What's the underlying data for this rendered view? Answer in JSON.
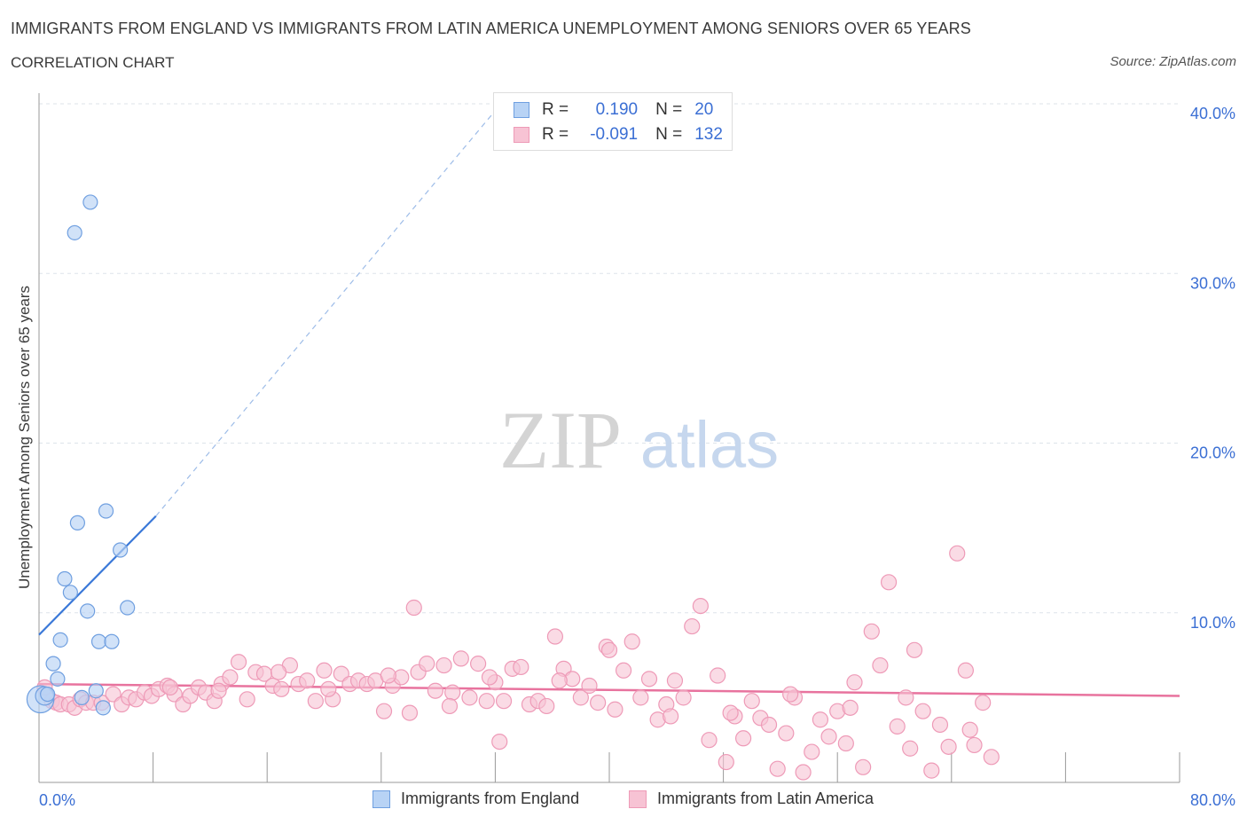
{
  "title": "IMMIGRANTS FROM ENGLAND VS IMMIGRANTS FROM LATIN AMERICA UNEMPLOYMENT AMONG SENIORS OVER 65 YEARS",
  "subtitle": "CORRELATION CHART",
  "source": "Source: ZipAtlas.com",
  "watermark": {
    "zip": "ZIP",
    "atlas": "atlas"
  },
  "legend": {
    "r_label": "R =",
    "n_label": "N =",
    "england": {
      "r": "0.190",
      "n": "20"
    },
    "latam": {
      "r": "-0.091",
      "n": "132"
    }
  },
  "bottom_legend": {
    "england": "Immigrants from England",
    "latam": "Immigrants from Latin America"
  },
  "colors": {
    "england_fill": "#b8d3f5",
    "england_stroke": "#6f9fe0",
    "england_line": "#3a78d8",
    "latam_fill": "#f7c3d4",
    "latam_stroke": "#ee9ab7",
    "latam_line": "#e8739e",
    "axis_text": "#3b6fd4",
    "grid": "#dde3ea"
  },
  "chart_data": {
    "type": "scatter",
    "title": "IMMIGRANTS FROM ENGLAND VS IMMIGRANTS FROM LATIN AMERICA UNEMPLOYMENT AMONG SENIORS OVER 65 YEARS",
    "xlabel": "",
    "ylabel": "Unemployment Among Seniors over 65 years",
    "xlim": [
      0,
      80
    ],
    "ylim": [
      0,
      40
    ],
    "x_tick_labels": [
      {
        "value": 0,
        "label": "0.0%"
      },
      {
        "value": 80,
        "label": "80.0%"
      }
    ],
    "y_tick_labels": [
      {
        "value": 10,
        "label": "10.0%"
      },
      {
        "value": 20,
        "label": "20.0%"
      },
      {
        "value": 30,
        "label": "30.0%"
      },
      {
        "value": 40,
        "label": "40.0%"
      }
    ],
    "series": [
      {
        "name": "Immigrants from England",
        "points": [
          [
            0.1,
            4.9,
            1.9
          ],
          [
            0.4,
            5.1,
            1.3
          ],
          [
            0.6,
            5.2,
            1.0
          ],
          [
            1.0,
            7.0,
            1.0
          ],
          [
            1.3,
            6.1,
            1.0
          ],
          [
            1.5,
            8.4,
            1.0
          ],
          [
            1.8,
            12.0,
            1.0
          ],
          [
            2.2,
            11.2,
            1.0
          ],
          [
            2.5,
            32.4,
            1.0
          ],
          [
            2.7,
            15.3,
            1.0
          ],
          [
            3.0,
            5.0,
            1.0
          ],
          [
            3.4,
            10.1,
            1.0
          ],
          [
            3.6,
            34.2,
            1.0
          ],
          [
            4.0,
            5.4,
            1.0
          ],
          [
            4.2,
            8.3,
            1.0
          ],
          [
            4.5,
            4.4,
            1.0
          ],
          [
            4.7,
            16.0,
            1.0
          ],
          [
            5.1,
            8.3,
            1.0
          ],
          [
            5.7,
            13.7,
            1.0
          ],
          [
            6.2,
            10.3,
            1.0
          ]
        ],
        "trend": {
          "x": [
            0,
            8.2
          ],
          "y": [
            8.7,
            15.7
          ],
          "dashed_to": [
            32.4,
            40.0
          ]
        }
      },
      {
        "name": "Immigrants from Latin America",
        "points": [
          [
            0.4,
            5.6
          ],
          [
            0.9,
            4.8
          ],
          [
            1.2,
            4.7
          ],
          [
            1.5,
            4.6
          ],
          [
            2.1,
            4.6
          ],
          [
            2.5,
            4.4
          ],
          [
            2.9,
            4.9
          ],
          [
            3.3,
            4.7
          ],
          [
            3.8,
            4.7
          ],
          [
            4.4,
            4.7
          ],
          [
            5.2,
            5.2
          ],
          [
            5.8,
            4.6
          ],
          [
            6.3,
            5.0
          ],
          [
            6.8,
            4.9
          ],
          [
            7.4,
            5.3
          ],
          [
            7.9,
            5.1
          ],
          [
            8.4,
            5.5
          ],
          [
            9.0,
            5.7
          ],
          [
            9.5,
            5.2
          ],
          [
            10.1,
            4.6
          ],
          [
            10.6,
            5.1
          ],
          [
            11.2,
            5.6
          ],
          [
            11.7,
            5.3
          ],
          [
            12.3,
            4.8
          ],
          [
            12.8,
            5.8
          ],
          [
            13.4,
            6.2
          ],
          [
            14.0,
            7.1
          ],
          [
            14.6,
            4.9
          ],
          [
            15.2,
            6.5
          ],
          [
            15.8,
            6.4
          ],
          [
            16.4,
            5.7
          ],
          [
            17.0,
            5.5
          ],
          [
            17.6,
            6.9
          ],
          [
            18.2,
            5.8
          ],
          [
            18.8,
            6.0
          ],
          [
            19.4,
            4.8
          ],
          [
            20.0,
            6.6
          ],
          [
            20.6,
            4.9
          ],
          [
            21.2,
            6.4
          ],
          [
            21.8,
            5.8
          ],
          [
            22.4,
            6.0
          ],
          [
            23.0,
            5.8
          ],
          [
            23.6,
            6.0
          ],
          [
            24.2,
            4.2
          ],
          [
            24.8,
            5.7
          ],
          [
            25.4,
            6.2
          ],
          [
            26.0,
            4.1
          ],
          [
            26.6,
            6.5
          ],
          [
            27.2,
            7.0
          ],
          [
            27.8,
            5.4
          ],
          [
            28.4,
            6.9
          ],
          [
            29.0,
            5.3
          ],
          [
            29.6,
            7.3
          ],
          [
            30.2,
            5.0
          ],
          [
            30.8,
            7.0
          ],
          [
            31.4,
            4.8
          ],
          [
            32.0,
            5.9
          ],
          [
            32.6,
            4.8
          ],
          [
            33.2,
            6.7
          ],
          [
            33.8,
            6.8
          ],
          [
            34.4,
            4.6
          ],
          [
            35.0,
            4.8
          ],
          [
            35.6,
            4.5
          ],
          [
            36.2,
            8.6
          ],
          [
            36.8,
            6.7
          ],
          [
            37.4,
            6.1
          ],
          [
            38.0,
            5.0
          ],
          [
            38.6,
            5.7
          ],
          [
            39.2,
            4.7
          ],
          [
            39.8,
            8.0
          ],
          [
            40.4,
            4.3
          ],
          [
            41.0,
            6.6
          ],
          [
            41.6,
            8.3
          ],
          [
            42.2,
            5.0
          ],
          [
            42.8,
            6.1
          ],
          [
            43.4,
            3.7
          ],
          [
            44.0,
            4.6
          ],
          [
            44.6,
            6.0
          ],
          [
            45.2,
            5.0
          ],
          [
            45.8,
            9.2
          ],
          [
            46.4,
            10.4
          ],
          [
            47.0,
            2.5
          ],
          [
            47.6,
            6.3
          ],
          [
            48.2,
            1.2
          ],
          [
            48.8,
            3.9
          ],
          [
            49.4,
            2.6
          ],
          [
            50.0,
            4.8
          ],
          [
            50.6,
            3.8
          ],
          [
            51.2,
            3.4
          ],
          [
            51.8,
            0.8
          ],
          [
            52.4,
            2.9
          ],
          [
            53.0,
            5.0
          ],
          [
            53.6,
            0.6
          ],
          [
            54.2,
            1.8
          ],
          [
            54.8,
            3.7
          ],
          [
            55.4,
            2.7
          ],
          [
            56.0,
            4.2
          ],
          [
            56.6,
            2.3
          ],
          [
            57.2,
            5.9
          ],
          [
            57.8,
            0.9
          ],
          [
            58.4,
            8.9
          ],
          [
            59.0,
            6.9
          ],
          [
            59.6,
            11.8
          ],
          [
            60.2,
            3.3
          ],
          [
            60.8,
            5.0
          ],
          [
            61.4,
            7.8
          ],
          [
            62.0,
            4.2
          ],
          [
            62.6,
            0.7
          ],
          [
            63.2,
            3.4
          ],
          [
            63.8,
            2.1
          ],
          [
            64.4,
            13.5
          ],
          [
            65.0,
            6.6
          ],
          [
            65.6,
            2.2
          ],
          [
            66.2,
            4.7
          ],
          [
            66.8,
            1.5
          ],
          [
            9.2,
            5.6
          ],
          [
            12.6,
            5.4
          ],
          [
            16.8,
            6.5
          ],
          [
            20.3,
            5.5
          ],
          [
            24.5,
            6.3
          ],
          [
            28.8,
            4.5
          ],
          [
            32.3,
            2.4
          ],
          [
            36.5,
            6.0
          ],
          [
            40.0,
            7.8
          ],
          [
            44.3,
            3.9
          ],
          [
            48.5,
            4.1
          ],
          [
            52.7,
            5.2
          ],
          [
            56.9,
            4.4
          ],
          [
            61.1,
            2.0
          ],
          [
            65.3,
            3.1
          ],
          [
            26.3,
            10.3
          ],
          [
            31.6,
            6.2
          ]
        ],
        "trend": {
          "x": [
            0,
            80
          ],
          "y": [
            5.8,
            5.1
          ]
        }
      }
    ]
  }
}
